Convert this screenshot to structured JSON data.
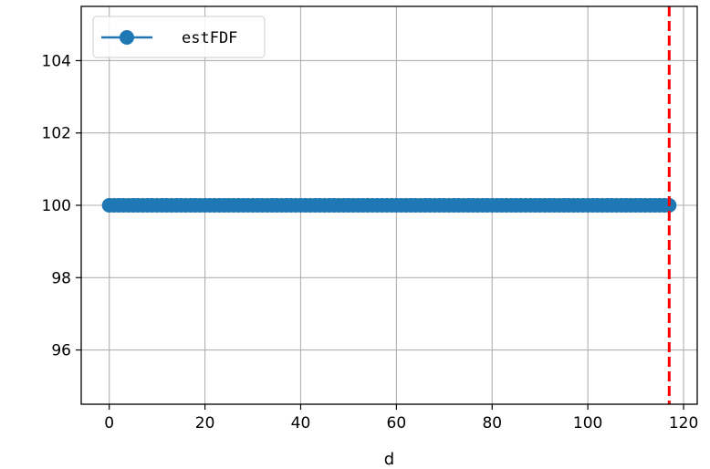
{
  "chart_data": {
    "type": "line",
    "xlabel": "d",
    "ylabel": "",
    "xlim": [
      -5.85,
      122.85
    ],
    "ylim": [
      94.5,
      105.5
    ],
    "x_ticks": [
      0,
      20,
      40,
      60,
      80,
      100,
      120
    ],
    "y_ticks": [
      96,
      98,
      100,
      102,
      104
    ],
    "grid": true,
    "legend_position": "top-left",
    "series": [
      {
        "name": "estFDF",
        "color": "#1f77b4",
        "marker": "circle",
        "x_start": 0,
        "x_end": 117,
        "y": 100
      }
    ],
    "vline": {
      "x": 117,
      "color": "#ff0000",
      "style": "dashed"
    }
  }
}
